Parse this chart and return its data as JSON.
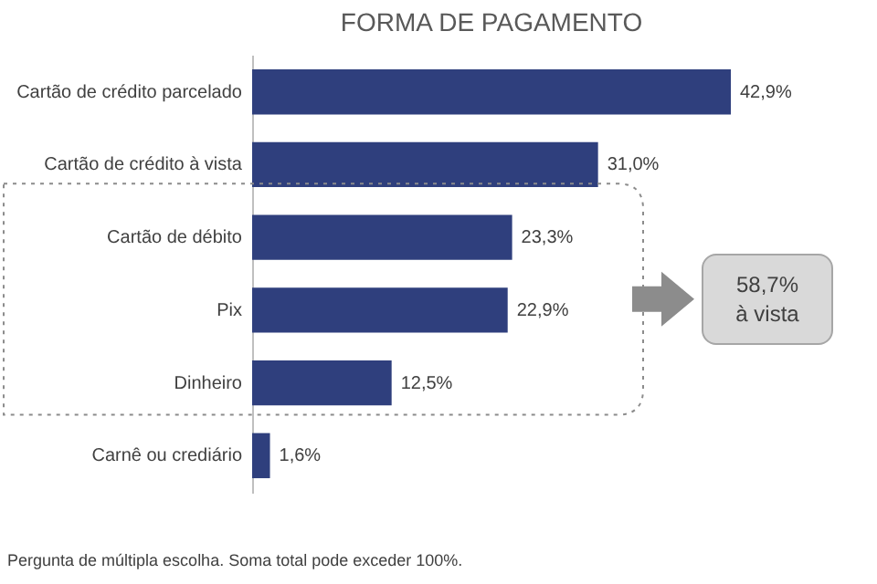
{
  "chart_data": {
    "type": "bar",
    "orientation": "horizontal",
    "title": "FORMA DE PAGAMENTO",
    "categories": [
      "Cartão de crédito parcelado",
      "Cartão de crédito à vista",
      "Cartão de débito",
      "Pix",
      "Dinheiro",
      "Carnê ou crediário"
    ],
    "values": [
      42.9,
      31.0,
      23.3,
      22.9,
      12.5,
      1.6
    ],
    "value_labels": [
      "42,9%",
      "31,0%",
      "23,3%",
      "22,9%",
      "12,5%",
      "1,6%"
    ],
    "color": "#2f3f7d",
    "annotations": [
      "58,7%\nà vista",
      "Pergunta de múltipla escolha. Soma total pode exceder 100%."
    ]
  }
}
